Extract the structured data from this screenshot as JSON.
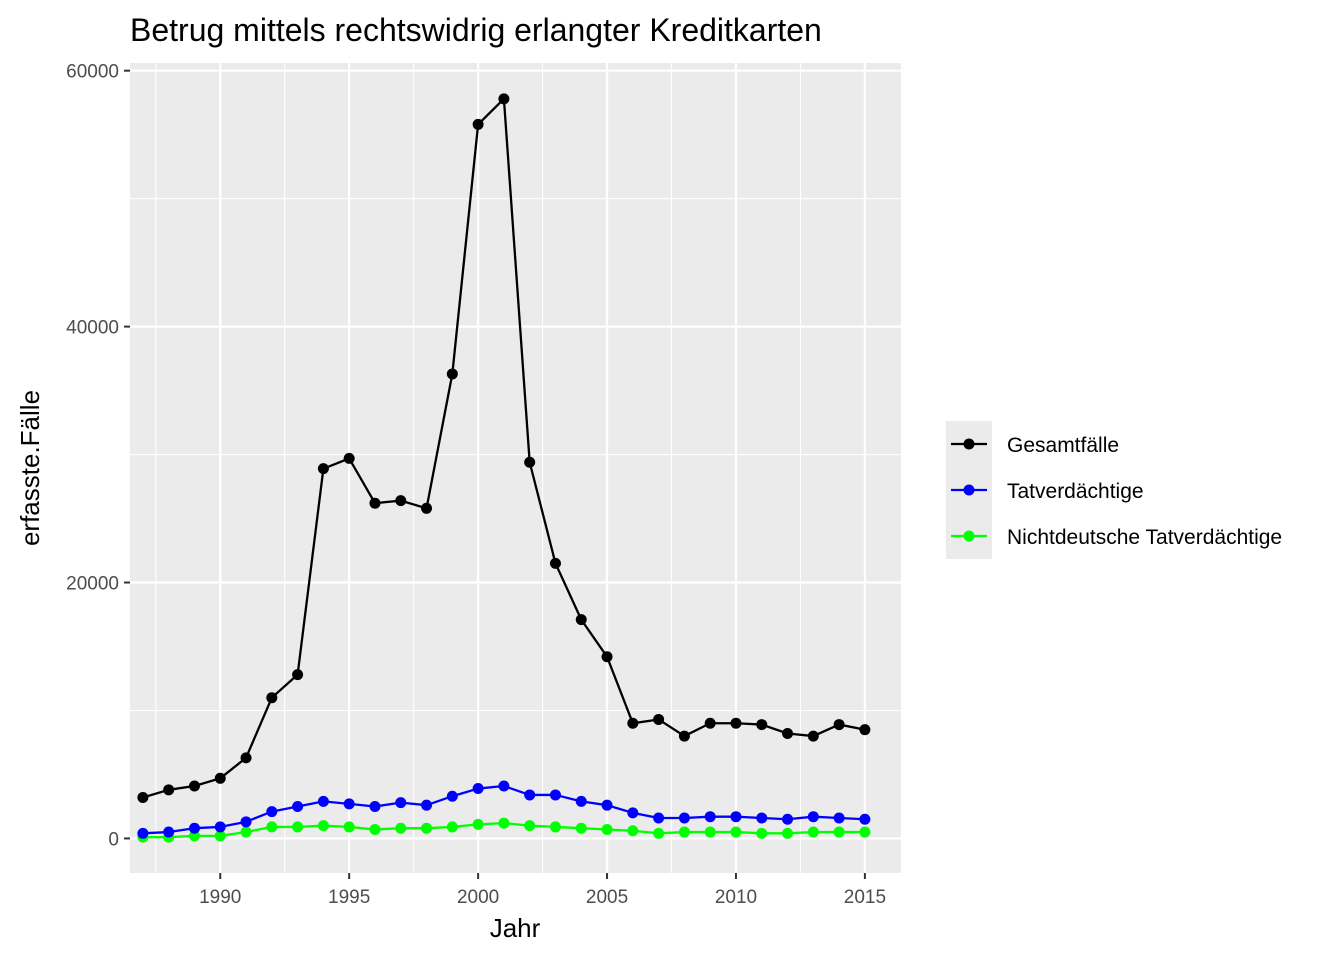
{
  "chart_data": {
    "type": "line",
    "title": "Betrug mittels rechtswidrig erlangter Kreditkarten",
    "xlabel": "Jahr",
    "ylabel": "erfasste.Fälle",
    "xlim": [
      1986.5,
      2016.4
    ],
    "ylim": [
      -2700,
      60600
    ],
    "x_ticks": [
      1990,
      1995,
      2000,
      2005,
      2010,
      2015
    ],
    "x_tick_labels": [
      "1990",
      "1995",
      "2000",
      "2005",
      "2010",
      "2015"
    ],
    "y_ticks": [
      0,
      20000,
      40000,
      60000
    ],
    "y_tick_labels": [
      "0",
      "20000",
      "40000",
      "60000"
    ],
    "grid": true,
    "legend_position": "right",
    "x": [
      1987,
      1988,
      1989,
      1990,
      1991,
      1992,
      1993,
      1994,
      1995,
      1996,
      1997,
      1998,
      1999,
      2000,
      2001,
      2002,
      2003,
      2004,
      2005,
      2006,
      2007,
      2008,
      2009,
      2010,
      2011,
      2012,
      2013,
      2014,
      2015
    ],
    "series": [
      {
        "name": "Gesamtfälle",
        "color": "#000000",
        "values": [
          3200,
          3800,
          4100,
          4700,
          6300,
          11000,
          12800,
          28900,
          29700,
          26200,
          26400,
          25800,
          36300,
          55800,
          57800,
          29400,
          21500,
          17100,
          14200,
          9000,
          9300,
          8000,
          9000,
          9000,
          8900,
          8200,
          8000,
          8900,
          8500
        ]
      },
      {
        "name": "Tatverdächtige",
        "color": "#0000ff",
        "values": [
          400,
          500,
          800,
          900,
          1300,
          2100,
          2500,
          2900,
          2700,
          2500,
          2800,
          2600,
          3300,
          3900,
          4100,
          3400,
          3400,
          2900,
          2600,
          2000,
          1600,
          1600,
          1700,
          1700,
          1600,
          1500,
          1700,
          1600,
          1500
        ]
      },
      {
        "name": "Nichtdeutsche Tatverdächtige",
        "color": "#00ff00",
        "values": [
          100,
          100,
          200,
          200,
          500,
          900,
          900,
          1000,
          900,
          700,
          800,
          800,
          900,
          1100,
          1200,
          1000,
          900,
          800,
          700,
          600,
          400,
          500,
          500,
          500,
          400,
          400,
          500,
          500,
          500
        ]
      }
    ]
  }
}
